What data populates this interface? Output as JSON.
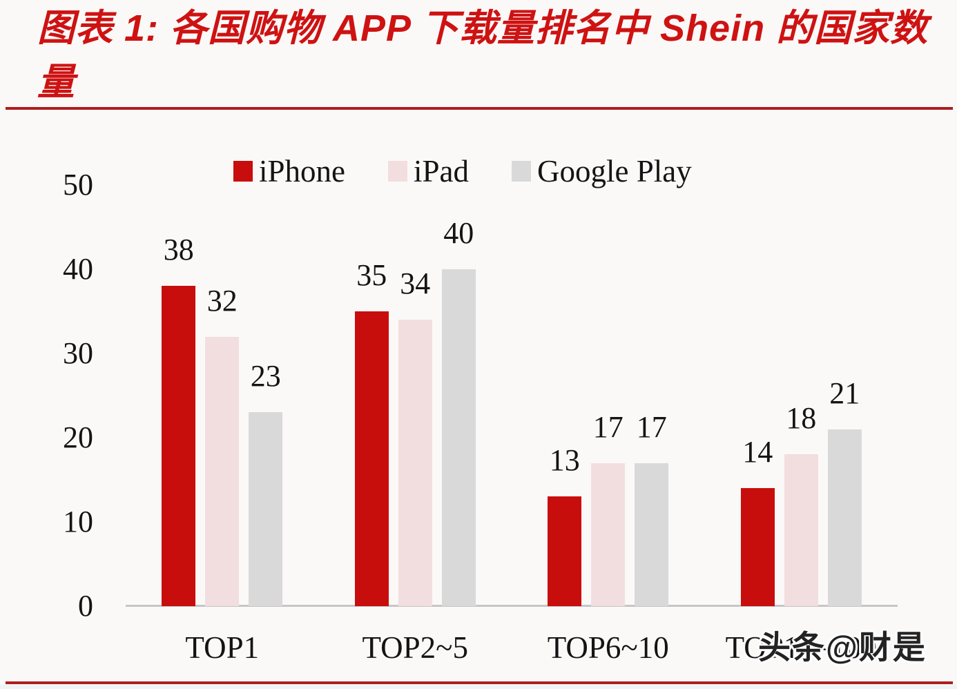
{
  "title": {
    "line1": "图表 1: 各国购物 APP 下载量排名中 Shein 的国家数",
    "line2": "量",
    "full_text": "图表 1: 各国购物 APP 下载量排名中 Shein 的国家数量"
  },
  "watermark": "头条@财是",
  "colors": {
    "iphone": "#c80d0d",
    "ipad": "#f2dede",
    "google_play": "#d9d9d9",
    "title_red": "#ce1212",
    "rule_red": "#ae1e1e",
    "axis_gray": "#c6c6c6",
    "text": "#141414",
    "background": "#fbf8f8"
  },
  "chart_data": {
    "type": "bar",
    "categories": [
      "TOP1",
      "TOP2~5",
      "TOP6~10",
      "TOP11~100"
    ],
    "series": [
      {
        "name": "iPhone",
        "color_key": "iphone",
        "values": [
          38,
          35,
          13,
          14
        ]
      },
      {
        "name": "iPad",
        "color_key": "ipad",
        "values": [
          32,
          34,
          17,
          18
        ]
      },
      {
        "name": "Google Play",
        "color_key": "google_play",
        "values": [
          23,
          40,
          17,
          21
        ]
      }
    ],
    "y_ticks": [
      0,
      10,
      20,
      30,
      40,
      50
    ],
    "ylim": [
      0,
      50
    ],
    "xlabel": "",
    "ylabel": "",
    "grid": false,
    "data_labels": true,
    "legend_position": "top"
  }
}
